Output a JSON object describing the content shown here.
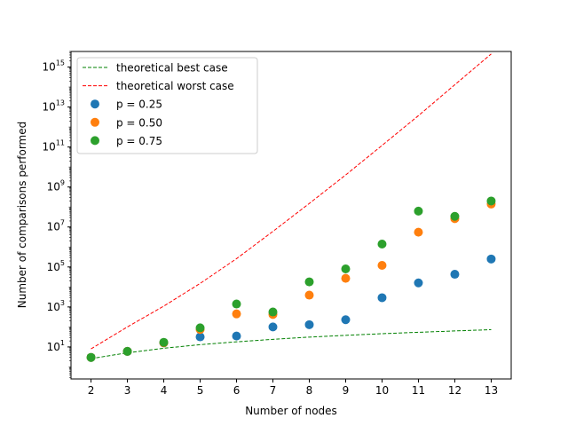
{
  "chart_data": {
    "type": "scatter",
    "xlabel": "Number of nodes",
    "ylabel": "Number of comparisons performed",
    "y_scale": "log",
    "ylim": [
      0.25,
      6000000000000000.0
    ],
    "xlim": [
      1.45,
      13.55
    ],
    "x_ticks": [
      2,
      3,
      4,
      5,
      6,
      7,
      8,
      9,
      10,
      11,
      12,
      13
    ],
    "y_ticks": [
      {
        "value": 10,
        "base": "10",
        "exp": "1"
      },
      {
        "value": 1000,
        "base": "10",
        "exp": "3"
      },
      {
        "value": 100000,
        "base": "10",
        "exp": "5"
      },
      {
        "value": 10000000,
        "base": "10",
        "exp": "7"
      },
      {
        "value": 1000000000,
        "base": "10",
        "exp": "9"
      },
      {
        "value": 100000000000,
        "base": "10",
        "exp": "11"
      },
      {
        "value": 10000000000000,
        "base": "10",
        "exp": "13"
      },
      {
        "value": 1000000000000000,
        "base": "10",
        "exp": "15"
      }
    ],
    "legend_position": "top-left",
    "grid": false,
    "x": [
      2,
      3,
      4,
      5,
      6,
      7,
      8,
      9,
      10,
      11,
      12,
      13
    ],
    "lines": [
      {
        "name": "theoretical best case",
        "color": "#008000",
        "dashed": true,
        "values": [
          2.6,
          5.1,
          8.6,
          13,
          18,
          24,
          31,
          38,
          46,
          54,
          63,
          73
        ]
      },
      {
        "name": "theoretical worst case",
        "color": "#ff0000",
        "dashed": true,
        "values": [
          8,
          100,
          1100,
          15000,
          260000,
          6000000,
          150000000,
          4000000000,
          120000000000,
          3700000000000,
          130000000000000,
          4500000000000000
        ]
      }
    ],
    "series": [
      {
        "name": "p = 0.25",
        "color": "#1f77b4",
        "values": [
          3,
          6,
          16,
          32,
          35,
          100,
          130,
          230,
          2900,
          16000,
          43000,
          250000
        ]
      },
      {
        "name": "p = 0.50",
        "color": "#ff7f0e",
        "values": [
          3,
          6,
          16,
          75,
          450,
          420,
          3900,
          27000,
          120000,
          5500000,
          26000000,
          140000000
        ]
      },
      {
        "name": "p = 0.75",
        "color": "#2ca02c",
        "values": [
          3,
          6,
          17,
          90,
          1400,
          560,
          18000,
          80000,
          1400000,
          62000000,
          34000000,
          200000000
        ]
      }
    ]
  }
}
